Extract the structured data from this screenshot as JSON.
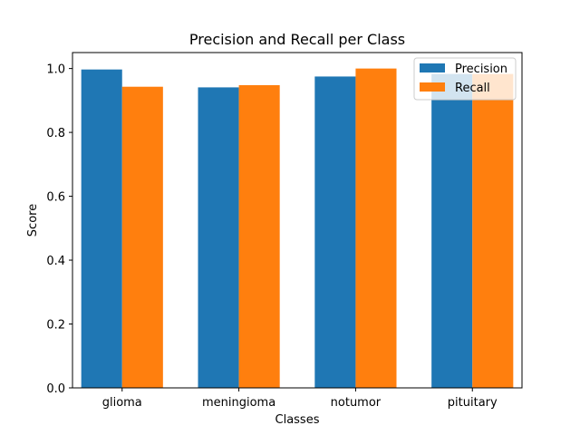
{
  "chart_data": {
    "type": "bar",
    "title": "Precision and Recall per Class",
    "xlabel": "Classes",
    "ylabel": "Score",
    "categories": [
      "glioma",
      "meningioma",
      "notumor",
      "pituitary"
    ],
    "series": [
      {
        "name": "Precision",
        "color": "#1f77b4",
        "values": [
          0.997,
          0.941,
          0.975,
          0.983
        ]
      },
      {
        "name": "Recall",
        "color": "#ff7f0e",
        "values": [
          0.943,
          0.948,
          1.0,
          0.983
        ]
      }
    ],
    "ylim": [
      0,
      1.05
    ],
    "yticks": [
      "0.0",
      "0.2",
      "0.4",
      "0.6",
      "0.8",
      "1.0"
    ],
    "grid": false,
    "legend_position": "top-right"
  }
}
